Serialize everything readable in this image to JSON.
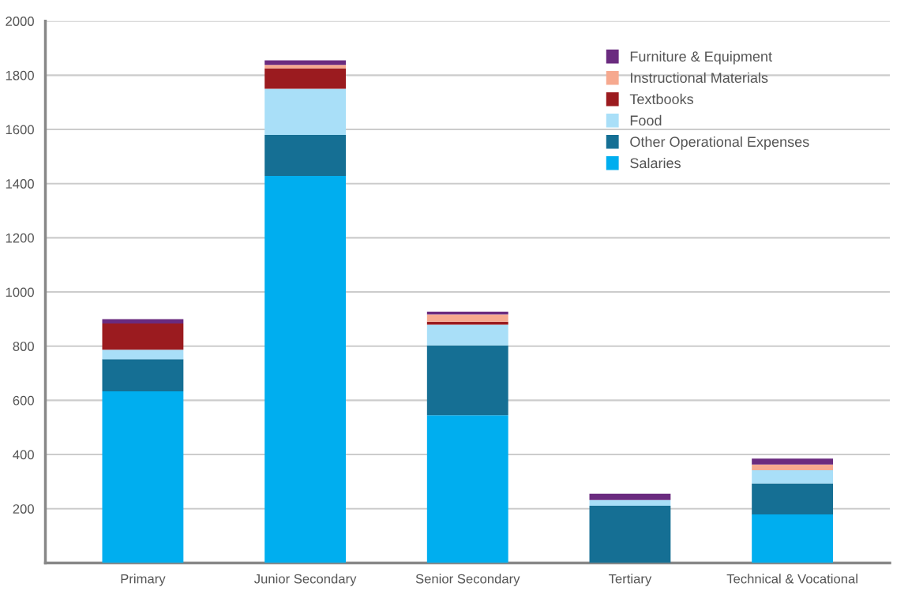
{
  "chart_data": {
    "type": "bar",
    "stacked": true,
    "categories": [
      "Primary",
      "Junior Secondary",
      "Senior Secondary",
      "Tertiary",
      "Technical & Vocational"
    ],
    "series": [
      {
        "name": "Salaries",
        "color": "#00aeef",
        "values": [
          633,
          1428,
          545,
          0,
          179
        ]
      },
      {
        "name": "Other Operational Expenses",
        "color": "#156f94",
        "values": [
          119,
          152,
          258,
          211,
          114
        ]
      },
      {
        "name": "Food",
        "color": "#a9dff8",
        "values": [
          35,
          170,
          76,
          21,
          49
        ]
      },
      {
        "name": "Textbooks",
        "color": "#9b1b1f",
        "values": [
          97,
          76,
          11,
          0,
          0
        ]
      },
      {
        "name": "Instructional Materials",
        "color": "#f6a98f",
        "values": [
          0,
          12,
          27,
          0,
          21
        ]
      },
      {
        "name": "Furniture & Equipment",
        "color": "#6a2b7f",
        "values": [
          16,
          17,
          10,
          23,
          22
        ]
      }
    ],
    "ylim": [
      0,
      2000
    ],
    "yticks": [
      200,
      400,
      600,
      800,
      1000,
      1200,
      1400,
      1600,
      1800,
      2000
    ],
    "grid": "y",
    "legend": "top right"
  }
}
